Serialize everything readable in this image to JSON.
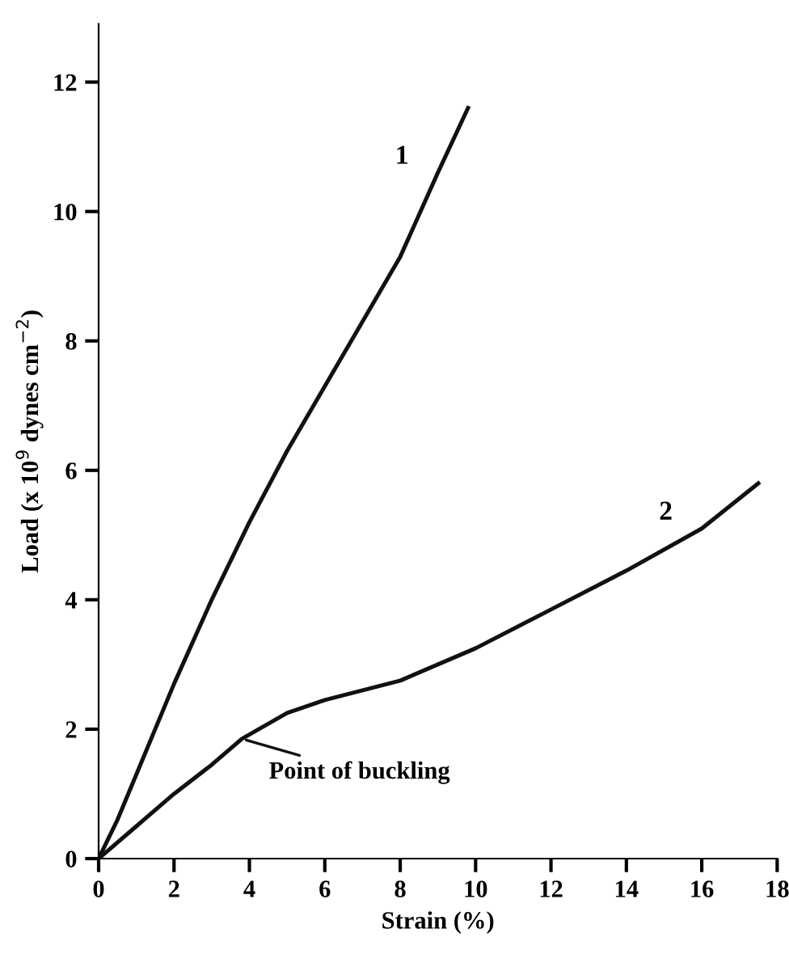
{
  "chart_data": {
    "type": "line",
    "xlabel": "Strain (%)",
    "ylabel": "Load (x 10$^{9}$ dynes cm$^{−2}$)",
    "xlim": [
      0,
      18
    ],
    "ylim": [
      0,
      12.9
    ],
    "xticks": [
      0,
      2,
      4,
      6,
      8,
      10,
      12,
      14,
      16,
      18
    ],
    "yticks": [
      0,
      2,
      4,
      6,
      8,
      10,
      12
    ],
    "series": [
      {
        "name": "1",
        "color": "#111111",
        "x": [
          0,
          0.5,
          1,
          2,
          3,
          4,
          5,
          6,
          7,
          8,
          9,
          9.8
        ],
        "values": [
          0,
          0.6,
          1.3,
          2.7,
          4.0,
          5.2,
          6.3,
          7.3,
          8.3,
          9.3,
          10.6,
          11.6
        ]
      },
      {
        "name": "2",
        "color": "#111111",
        "x": [
          0,
          1,
          2,
          3,
          3.8,
          5,
          6,
          8,
          10,
          12,
          14,
          16,
          17.5
        ],
        "values": [
          0,
          0.5,
          1.0,
          1.45,
          1.85,
          2.25,
          2.45,
          2.75,
          3.25,
          3.85,
          4.45,
          5.1,
          5.8
        ]
      }
    ],
    "annotations": [
      {
        "text": "Point of buckling",
        "x": 3.8,
        "y": 1.85
      }
    ],
    "grid": false,
    "legend": false,
    "marker": "none",
    "line_style": "solid"
  }
}
